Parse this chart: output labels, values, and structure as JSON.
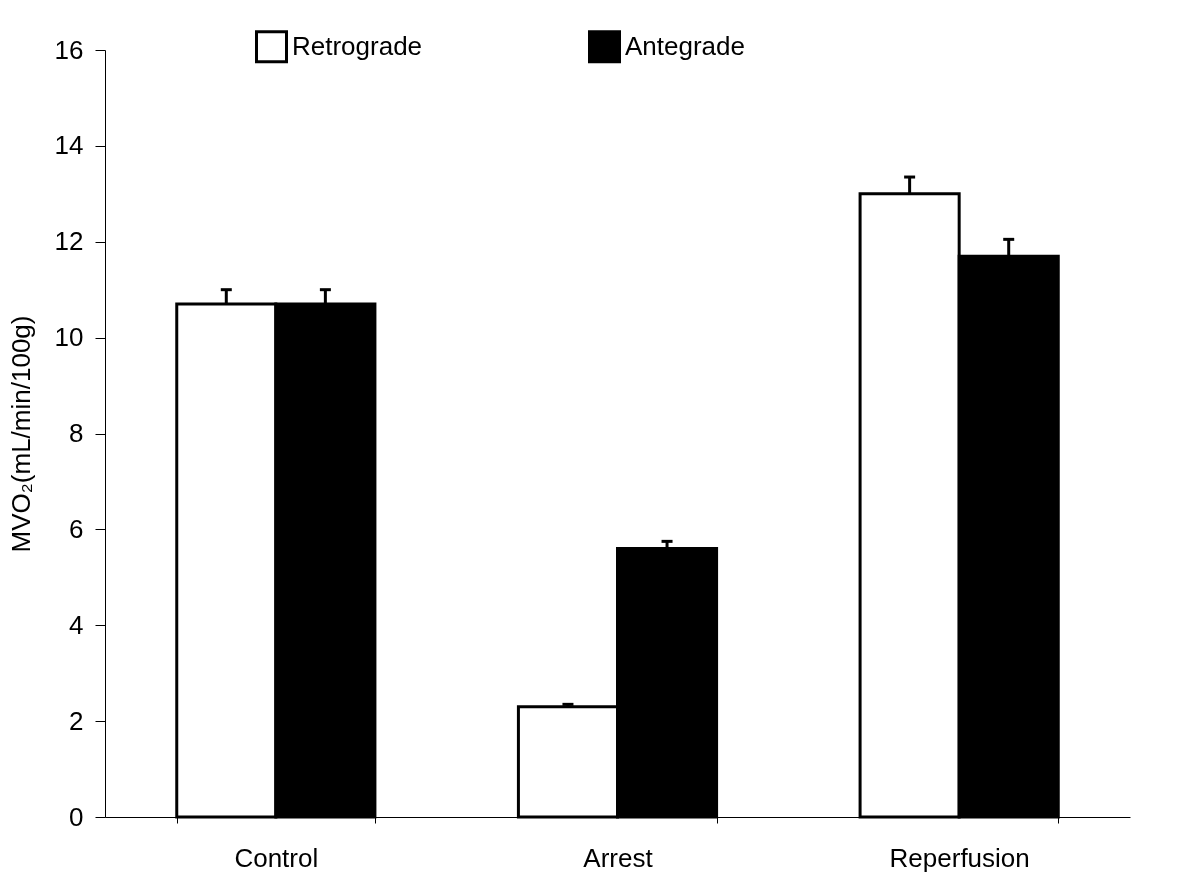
{
  "chart_data": {
    "type": "bar",
    "ylabel": "MVO₂(mL/min/100g)",
    "categories": [
      "Control",
      "Arrest",
      "Reperfusion"
    ],
    "series": [
      {
        "name": "Retrograde",
        "color": "#ffffff",
        "values": [
          10.7,
          2.3,
          13.0
        ],
        "errors": [
          0.3,
          0.05,
          0.35
        ]
      },
      {
        "name": "Antegrade",
        "color": "#000000",
        "values": [
          10.7,
          5.6,
          11.7
        ],
        "errors": [
          0.3,
          0.15,
          0.35
        ]
      }
    ],
    "ylim": [
      0,
      16
    ],
    "yticks": [
      0,
      2,
      4,
      6,
      8,
      10,
      12,
      14,
      16
    ],
    "grid": false,
    "legend": "top"
  }
}
